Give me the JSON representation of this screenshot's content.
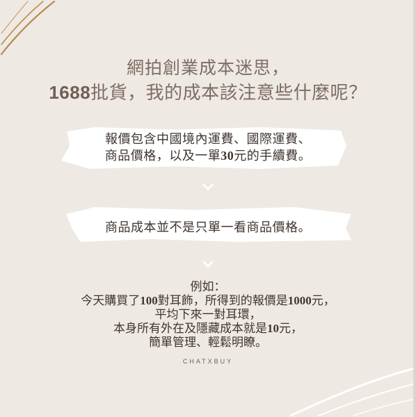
{
  "title": {
    "line1": "網拍創業成本迷思，",
    "line2_number": "1688",
    "line2_text": "批貨，我的成本該注意些什麼呢？"
  },
  "point1": {
    "line1": "報價包含中國境內運費、國際運費、",
    "line2_prefix": "商品價格，以及一單",
    "line2_number": "30",
    "line2_suffix": "元的手續費。"
  },
  "point2": {
    "text": "商品成本並不是只單一看商品價格。"
  },
  "example": {
    "heading": "例如：",
    "l1_a": "今天購買了",
    "l1_n1": "100",
    "l1_b": "對耳飾，所得到的報價是",
    "l1_n2": "1000",
    "l1_c": "元，",
    "l2": "平均下來一對耳環，",
    "l3_a": "本身所有外在及隱藏成本就是",
    "l3_n": "10",
    "l3_b": "元，",
    "l4": "簡單管理、輕鬆明瞭。"
  },
  "brand": "CHATXBUY",
  "colors": {
    "background": "#efe9e4",
    "accent_gold": "#b88a4a",
    "title": "#7e6d63",
    "highlight": "#ffffff"
  }
}
